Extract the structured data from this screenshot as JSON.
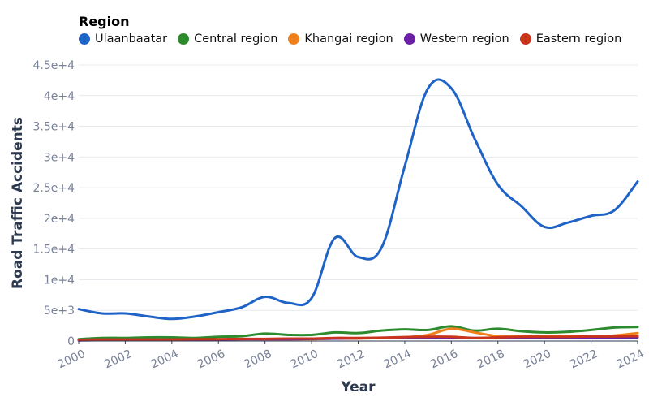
{
  "chart_data": {
    "type": "line",
    "xlabel": "Year",
    "ylabel": "Road Traffic Accidents",
    "legend_title": "Region",
    "legend_position": "top",
    "grid": true,
    "xlim": [
      2000,
      2024
    ],
    "ylim": [
      0,
      45000
    ],
    "x_ticks": [
      "2000",
      "2002",
      "2004",
      "2006",
      "2008",
      "2010",
      "2012",
      "2014",
      "2016",
      "2018",
      "2020",
      "2022",
      "2024"
    ],
    "y_ticks": [
      {
        "value": 0,
        "label": "0"
      },
      {
        "value": 5000,
        "label": "5e+3"
      },
      {
        "value": 10000,
        "label": "1e+4"
      },
      {
        "value": 15000,
        "label": "1.5e+4"
      },
      {
        "value": 20000,
        "label": "2e+4"
      },
      {
        "value": 25000,
        "label": "2.5e+4"
      },
      {
        "value": 30000,
        "label": "3e+4"
      },
      {
        "value": 35000,
        "label": "3.5e+4"
      },
      {
        "value": 40000,
        "label": "4e+4"
      },
      {
        "value": 45000,
        "label": "4.5e+4"
      }
    ],
    "x": [
      2000,
      2001,
      2002,
      2003,
      2004,
      2005,
      2006,
      2007,
      2008,
      2009,
      2010,
      2011,
      2012,
      2013,
      2014,
      2015,
      2016,
      2017,
      2018,
      2019,
      2020,
      2021,
      2022,
      2023,
      2024
    ],
    "series": [
      {
        "name": "Ulaanbaatar",
        "color": "#1f63c6",
        "values": [
          5200,
          4500,
          4500,
          4000,
          3600,
          4000,
          4700,
          5500,
          7200,
          6200,
          7000,
          16800,
          13700,
          15200,
          28500,
          41200,
          41200,
          33000,
          25500,
          22000,
          18600,
          19300,
          20400,
          21300,
          26000
        ]
      },
      {
        "name": "Central region",
        "color": "#2d8a2d",
        "values": [
          300,
          500,
          500,
          600,
          600,
          500,
          700,
          800,
          1200,
          1000,
          1000,
          1400,
          1300,
          1700,
          1900,
          1800,
          2400,
          1700,
          2000,
          1600,
          1400,
          1500,
          1800,
          2200,
          2300
        ]
      },
      {
        "name": "Khangai region",
        "color": "#f07f1d",
        "values": [
          200,
          200,
          200,
          200,
          200,
          200,
          200,
          300,
          300,
          300,
          300,
          400,
          400,
          500,
          600,
          1000,
          2000,
          1400,
          800,
          800,
          800,
          800,
          800,
          900,
          1300
        ]
      },
      {
        "name": "Western region",
        "color": "#6a21a5",
        "values": [
          100,
          150,
          150,
          150,
          200,
          200,
          250,
          300,
          300,
          300,
          350,
          400,
          450,
          500,
          550,
          550,
          600,
          500,
          500,
          500,
          500,
          500,
          500,
          500,
          600
        ]
      },
      {
        "name": "Eastern region",
        "color": "#c8351c",
        "values": [
          200,
          250,
          250,
          250,
          250,
          300,
          300,
          350,
          350,
          400,
          400,
          500,
          500,
          550,
          650,
          700,
          700,
          500,
          600,
          700,
          700,
          700,
          750,
          750,
          800
        ]
      }
    ]
  }
}
